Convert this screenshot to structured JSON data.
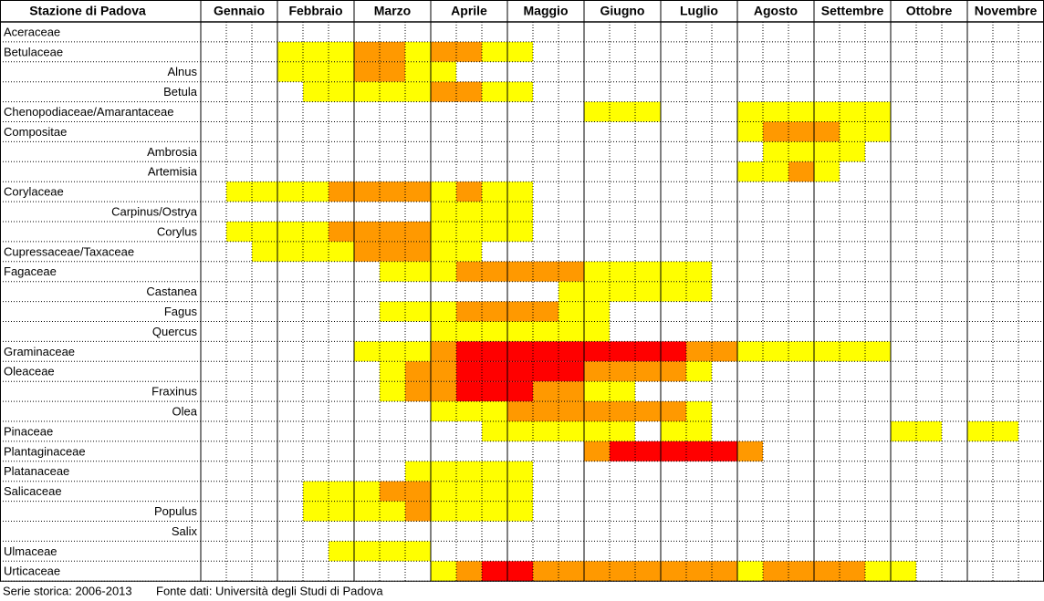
{
  "header": {
    "title": "Stazione di Padova",
    "months": [
      "Gennaio",
      "Febbraio",
      "Marzo",
      "Aprile",
      "Maggio",
      "Giugno",
      "Luglio",
      "Agosto",
      "Settembre",
      "Ottobre",
      "Novembre"
    ]
  },
  "colors": [
    "#ffffff",
    "#ffff00",
    "#ff9900",
    "#ff0000"
  ],
  "families": [
    {
      "name": "Aceraceae",
      "cells": [
        0,
        0,
        0,
        0,
        0,
        0,
        0,
        0,
        0,
        0,
        0,
        0,
        0,
        0,
        0,
        0,
        0,
        0,
        0,
        0,
        0,
        0,
        0,
        0,
        0,
        0,
        0,
        0,
        0,
        0,
        0,
        0,
        0
      ],
      "genera": []
    },
    {
      "name": "Betulaceae",
      "cells": [
        0,
        0,
        0,
        1,
        1,
        1,
        2,
        2,
        1,
        2,
        2,
        1,
        1,
        0,
        0,
        0,
        0,
        0,
        0,
        0,
        0,
        0,
        0,
        0,
        0,
        0,
        0,
        0,
        0,
        0,
        0,
        0,
        0
      ],
      "genera": [
        {
          "name": "Alnus",
          "cells": [
            0,
            0,
            0,
            1,
            1,
            1,
            2,
            2,
            1,
            1,
            0,
            0,
            0,
            0,
            0,
            0,
            0,
            0,
            0,
            0,
            0,
            0,
            0,
            0,
            0,
            0,
            0,
            0,
            0,
            0,
            0,
            0,
            0
          ]
        },
        {
          "name": "Betula",
          "cells": [
            0,
            0,
            0,
            0,
            1,
            1,
            1,
            1,
            1,
            2,
            2,
            1,
            1,
            0,
            0,
            0,
            0,
            0,
            0,
            0,
            0,
            0,
            0,
            0,
            0,
            0,
            0,
            0,
            0,
            0,
            0,
            0,
            0
          ]
        }
      ]
    },
    {
      "name": "Chenopodiaceae/Amarantaceae",
      "cells": [
        0,
        0,
        0,
        0,
        0,
        0,
        0,
        0,
        0,
        0,
        0,
        0,
        0,
        0,
        0,
        1,
        1,
        1,
        0,
        0,
        0,
        1,
        1,
        1,
        1,
        1,
        1,
        0,
        0,
        0,
        0,
        0,
        0
      ],
      "genera": []
    },
    {
      "name": "Compositae",
      "cells": [
        0,
        0,
        0,
        0,
        0,
        0,
        0,
        0,
        0,
        0,
        0,
        0,
        0,
        0,
        0,
        0,
        0,
        0,
        0,
        0,
        0,
        1,
        2,
        2,
        2,
        1,
        1,
        0,
        0,
        0,
        0,
        0,
        0
      ],
      "genera": [
        {
          "name": "Ambrosia",
          "cells": [
            0,
            0,
            0,
            0,
            0,
            0,
            0,
            0,
            0,
            0,
            0,
            0,
            0,
            0,
            0,
            0,
            0,
            0,
            0,
            0,
            0,
            0,
            1,
            1,
            1,
            1,
            0,
            0,
            0,
            0,
            0,
            0,
            0
          ]
        },
        {
          "name": "Artemisia",
          "cells": [
            0,
            0,
            0,
            0,
            0,
            0,
            0,
            0,
            0,
            0,
            0,
            0,
            0,
            0,
            0,
            0,
            0,
            0,
            0,
            0,
            0,
            1,
            1,
            2,
            1,
            0,
            0,
            0,
            0,
            0,
            0,
            0,
            0
          ]
        }
      ]
    },
    {
      "name": "Corylaceae",
      "cells": [
        0,
        1,
        1,
        1,
        1,
        2,
        2,
        2,
        2,
        1,
        2,
        1,
        1,
        0,
        0,
        0,
        0,
        0,
        0,
        0,
        0,
        0,
        0,
        0,
        0,
        0,
        0,
        0,
        0,
        0,
        0,
        0,
        0
      ],
      "genera": [
        {
          "name": "Carpinus/Ostrya",
          "cells": [
            0,
            0,
            0,
            0,
            0,
            0,
            0,
            0,
            0,
            1,
            1,
            1,
            1,
            0,
            0,
            0,
            0,
            0,
            0,
            0,
            0,
            0,
            0,
            0,
            0,
            0,
            0,
            0,
            0,
            0,
            0,
            0,
            0
          ]
        },
        {
          "name": "Corylus",
          "cells": [
            0,
            1,
            1,
            1,
            1,
            2,
            2,
            2,
            2,
            1,
            1,
            1,
            1,
            0,
            0,
            0,
            0,
            0,
            0,
            0,
            0,
            0,
            0,
            0,
            0,
            0,
            0,
            0,
            0,
            0,
            0,
            0,
            0
          ]
        }
      ]
    },
    {
      "name": "Cupressaceae/Taxaceae",
      "cells": [
        0,
        0,
        1,
        1,
        1,
        1,
        2,
        2,
        2,
        1,
        1,
        0,
        0,
        0,
        0,
        0,
        0,
        0,
        0,
        0,
        0,
        0,
        0,
        0,
        0,
        0,
        0,
        0,
        0,
        0,
        0,
        0,
        0
      ],
      "genera": []
    },
    {
      "name": "Fagaceae",
      "cells": [
        0,
        0,
        0,
        0,
        0,
        0,
        0,
        1,
        1,
        1,
        2,
        2,
        2,
        2,
        2,
        1,
        1,
        1,
        1,
        1,
        0,
        0,
        0,
        0,
        0,
        0,
        0,
        0,
        0,
        0,
        0,
        0,
        0
      ],
      "genera": [
        {
          "name": "Castanea",
          "cells": [
            0,
            0,
            0,
            0,
            0,
            0,
            0,
            0,
            0,
            0,
            0,
            0,
            0,
            0,
            1,
            1,
            1,
            1,
            1,
            1,
            0,
            0,
            0,
            0,
            0,
            0,
            0,
            0,
            0,
            0,
            0,
            0,
            0
          ]
        },
        {
          "name": "Fagus",
          "cells": [
            0,
            0,
            0,
            0,
            0,
            0,
            0,
            1,
            1,
            1,
            2,
            2,
            2,
            2,
            1,
            1,
            0,
            0,
            0,
            0,
            0,
            0,
            0,
            0,
            0,
            0,
            0,
            0,
            0,
            0,
            0,
            0,
            0
          ]
        },
        {
          "name": "Quercus",
          "cells": [
            0,
            0,
            0,
            0,
            0,
            0,
            0,
            0,
            0,
            1,
            1,
            1,
            1,
            1,
            1,
            1,
            0,
            0,
            0,
            0,
            0,
            0,
            0,
            0,
            0,
            0,
            0,
            0,
            0,
            0,
            0,
            0,
            0
          ]
        }
      ]
    },
    {
      "name": "Graminaceae",
      "cells": [
        0,
        0,
        0,
        0,
        0,
        0,
        1,
        1,
        1,
        2,
        3,
        3,
        3,
        3,
        3,
        3,
        3,
        3,
        3,
        2,
        2,
        1,
        1,
        1,
        1,
        1,
        1,
        0,
        0,
        0,
        0,
        0,
        0
      ],
      "genera": []
    },
    {
      "name": "Oleaceae",
      "cells": [
        0,
        0,
        0,
        0,
        0,
        0,
        0,
        1,
        2,
        2,
        3,
        3,
        3,
        3,
        3,
        2,
        2,
        2,
        2,
        1,
        0,
        0,
        0,
        0,
        0,
        0,
        0,
        0,
        0,
        0,
        0,
        0,
        0
      ],
      "genera": [
        {
          "name": "Fraxinus",
          "cells": [
            0,
            0,
            0,
            0,
            0,
            0,
            0,
            1,
            2,
            2,
            3,
            3,
            3,
            2,
            2,
            1,
            1,
            0,
            0,
            0,
            0,
            0,
            0,
            0,
            0,
            0,
            0,
            0,
            0,
            0,
            0,
            0,
            0
          ]
        },
        {
          "name": "Olea",
          "cells": [
            0,
            0,
            0,
            0,
            0,
            0,
            0,
            0,
            0,
            1,
            1,
            1,
            2,
            2,
            2,
            2,
            2,
            2,
            2,
            1,
            0,
            0,
            0,
            0,
            0,
            0,
            0,
            0,
            0,
            0,
            0,
            0,
            0
          ]
        }
      ]
    },
    {
      "name": "Pinaceae",
      "cells": [
        0,
        0,
        0,
        0,
        0,
        0,
        0,
        0,
        0,
        0,
        0,
        1,
        1,
        1,
        1,
        1,
        1,
        0,
        1,
        1,
        0,
        0,
        0,
        0,
        0,
        0,
        0,
        1,
        1,
        0,
        1,
        1,
        0
      ],
      "genera": []
    },
    {
      "name": "Plantaginaceae",
      "cells": [
        0,
        0,
        0,
        0,
        0,
        0,
        0,
        0,
        0,
        0,
        0,
        0,
        0,
        0,
        0,
        2,
        3,
        3,
        3,
        3,
        3,
        2,
        0,
        0,
        0,
        0,
        0,
        0,
        0,
        0,
        0,
        0,
        0
      ],
      "genera": []
    },
    {
      "name": "Platanaceae",
      "cells": [
        0,
        0,
        0,
        0,
        0,
        0,
        0,
        0,
        1,
        1,
        1,
        1,
        1,
        0,
        0,
        0,
        0,
        0,
        0,
        0,
        0,
        0,
        0,
        0,
        0,
        0,
        0,
        0,
        0,
        0,
        0,
        0,
        0
      ],
      "genera": []
    },
    {
      "name": "Salicaceae",
      "cells": [
        0,
        0,
        0,
        0,
        1,
        1,
        1,
        2,
        2,
        1,
        1,
        1,
        1,
        0,
        0,
        0,
        0,
        0,
        0,
        0,
        0,
        0,
        0,
        0,
        0,
        0,
        0,
        0,
        0,
        0,
        0,
        0,
        0
      ],
      "genera": [
        {
          "name": "Populus",
          "cells": [
            0,
            0,
            0,
            0,
            1,
            1,
            1,
            1,
            2,
            1,
            1,
            1,
            1,
            0,
            0,
            0,
            0,
            0,
            0,
            0,
            0,
            0,
            0,
            0,
            0,
            0,
            0,
            0,
            0,
            0,
            0,
            0,
            0
          ]
        },
        {
          "name": "Salix",
          "cells": [
            0,
            0,
            0,
            0,
            0,
            0,
            0,
            0,
            0,
            0,
            0,
            0,
            0,
            0,
            0,
            0,
            0,
            0,
            0,
            0,
            0,
            0,
            0,
            0,
            0,
            0,
            0,
            0,
            0,
            0,
            0,
            0,
            0
          ]
        }
      ]
    },
    {
      "name": "Ulmaceae",
      "cells": [
        0,
        0,
        0,
        0,
        0,
        1,
        1,
        1,
        1,
        0,
        0,
        0,
        0,
        0,
        0,
        0,
        0,
        0,
        0,
        0,
        0,
        0,
        0,
        0,
        0,
        0,
        0,
        0,
        0,
        0,
        0,
        0,
        0
      ],
      "genera": []
    },
    {
      "name": "Urticaceae",
      "cells": [
        0,
        0,
        0,
        0,
        0,
        0,
        0,
        0,
        0,
        1,
        2,
        3,
        3,
        2,
        2,
        2,
        2,
        2,
        2,
        2,
        2,
        1,
        2,
        2,
        2,
        2,
        1,
        1,
        0,
        0,
        0,
        0,
        0
      ],
      "genera": []
    }
  ],
  "footer": {
    "series": "Serie storica: 2006-2013",
    "source": "Fonte dati: Università degli Studi di Padova"
  }
}
